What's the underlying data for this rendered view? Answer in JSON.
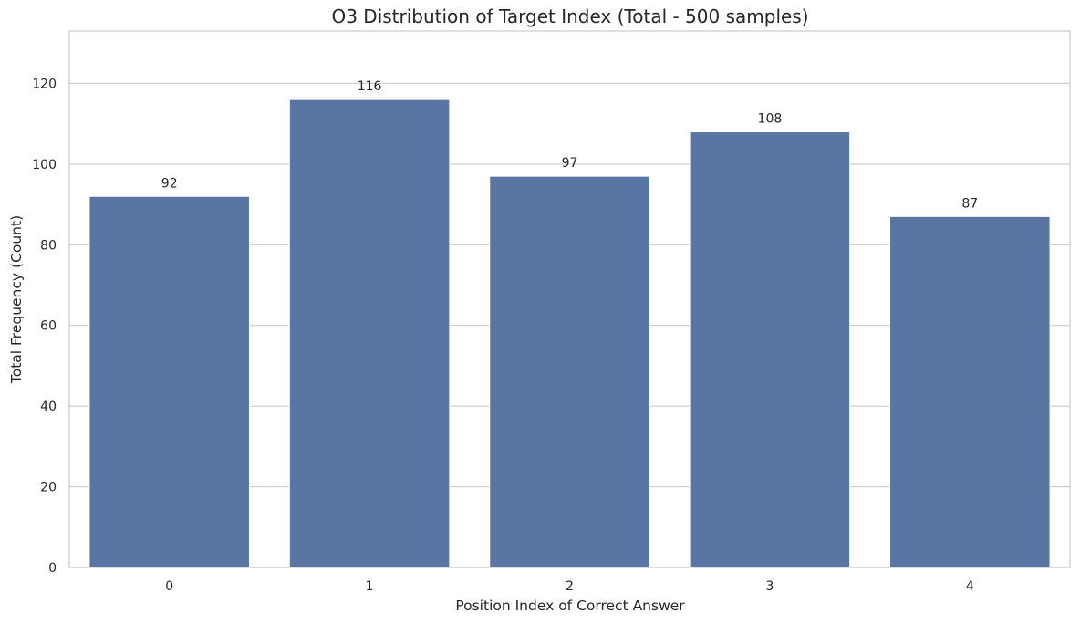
{
  "chart_data": {
    "type": "bar",
    "title": "O3 Distribution of Target Index (Total - 500 samples)",
    "xlabel": "Position Index of Correct Answer",
    "ylabel": "Total Frequency (Count)",
    "categories": [
      "0",
      "1",
      "2",
      "3",
      "4"
    ],
    "values": [
      92,
      116,
      97,
      108,
      87
    ],
    "data_labels": [
      "92",
      "116",
      "97",
      "108",
      "87"
    ],
    "ylim": [
      0,
      133
    ],
    "yticks": [
      0,
      20,
      40,
      60,
      80,
      100,
      120
    ],
    "ytick_labels": [
      "0",
      "20",
      "40",
      "60",
      "80",
      "100",
      "120"
    ],
    "grid": "horizontal",
    "legend": "none",
    "bar_color": "#5975a4",
    "grid_color": "#cccccc",
    "frame_color": "#cccccc"
  }
}
